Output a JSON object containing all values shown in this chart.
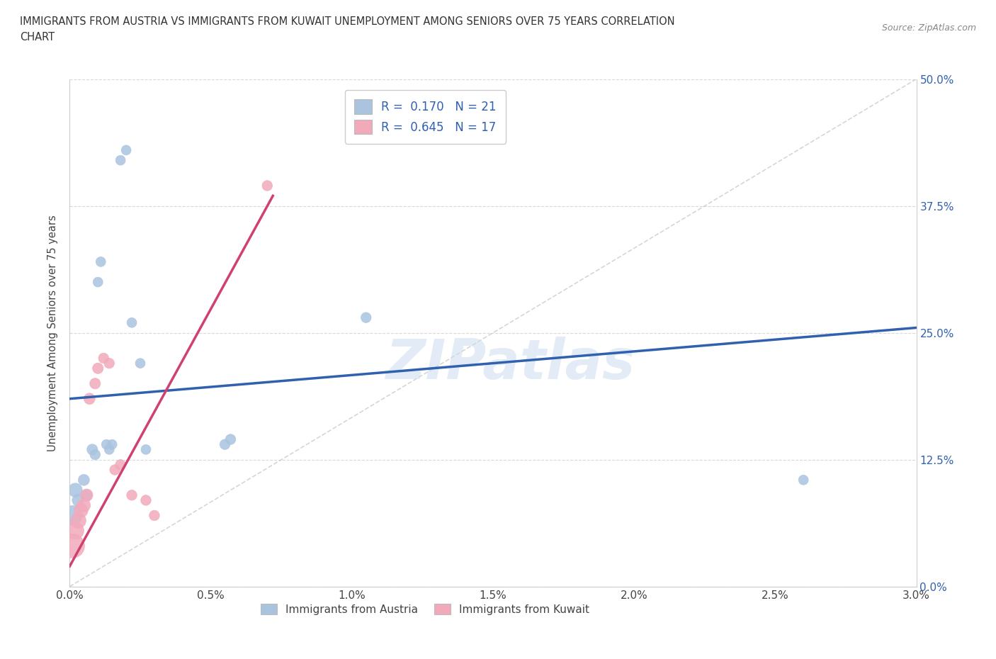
{
  "title_line1": "IMMIGRANTS FROM AUSTRIA VS IMMIGRANTS FROM KUWAIT UNEMPLOYMENT AMONG SENIORS OVER 75 YEARS CORRELATION",
  "title_line2": "CHART",
  "source": "Source: ZipAtlas.com",
  "ylabel": "Unemployment Among Seniors over 75 years",
  "watermark": "ZIPatlas",
  "xlim": [
    0.0,
    3.0
  ],
  "ylim": [
    0.0,
    50.0
  ],
  "xticks": [
    0.0,
    0.5,
    1.0,
    1.5,
    2.0,
    2.5,
    3.0
  ],
  "yticks": [
    0.0,
    12.5,
    25.0,
    37.5,
    50.0
  ],
  "austria_color": "#aac4e0",
  "kuwait_color": "#f2aabb",
  "austria_line_color": "#3060b0",
  "kuwait_line_color": "#d04070",
  "ref_line_color": "#cccccc",
  "austria_R": 0.17,
  "austria_N": 21,
  "kuwait_R": 0.645,
  "kuwait_N": 17,
  "austria_x": [
    0.01,
    0.02,
    0.03,
    0.05,
    0.06,
    0.08,
    0.09,
    0.1,
    0.11,
    0.13,
    0.14,
    0.15,
    0.18,
    0.2,
    0.22,
    0.25,
    0.27,
    0.55,
    0.57,
    1.05,
    2.6
  ],
  "austria_y": [
    7.0,
    9.5,
    8.5,
    10.5,
    9.0,
    13.5,
    13.0,
    30.0,
    32.0,
    14.0,
    13.5,
    14.0,
    42.0,
    43.0,
    26.0,
    22.0,
    13.5,
    14.0,
    14.5,
    26.5,
    10.5
  ],
  "austria_sizes": [
    400,
    200,
    150,
    130,
    120,
    120,
    110,
    100,
    100,
    100,
    100,
    100,
    100,
    100,
    100,
    100,
    100,
    110,
    110,
    110,
    100
  ],
  "kuwait_x": [
    0.01,
    0.02,
    0.03,
    0.04,
    0.05,
    0.06,
    0.07,
    0.09,
    0.1,
    0.12,
    0.14,
    0.16,
    0.18,
    0.22,
    0.27,
    0.3,
    0.7
  ],
  "kuwait_y": [
    4.0,
    5.5,
    6.5,
    7.5,
    8.0,
    9.0,
    18.5,
    20.0,
    21.5,
    22.5,
    22.0,
    11.5,
    12.0,
    9.0,
    8.5,
    7.0,
    39.5
  ],
  "kuwait_sizes": [
    600,
    300,
    250,
    200,
    180,
    160,
    130,
    120,
    120,
    110,
    110,
    110,
    110,
    110,
    110,
    110,
    110
  ],
  "austria_line_x": [
    0.0,
    3.0
  ],
  "austria_line_y": [
    18.5,
    25.5
  ],
  "kuwait_line_x": [
    0.0,
    0.72
  ],
  "kuwait_line_y": [
    2.0,
    38.5
  ],
  "ref_line_x": [
    0.0,
    3.0
  ],
  "ref_line_y": [
    0.0,
    50.0
  ],
  "legend_label_austria": "Immigrants from Austria",
  "legend_label_kuwait": "Immigrants from Kuwait"
}
